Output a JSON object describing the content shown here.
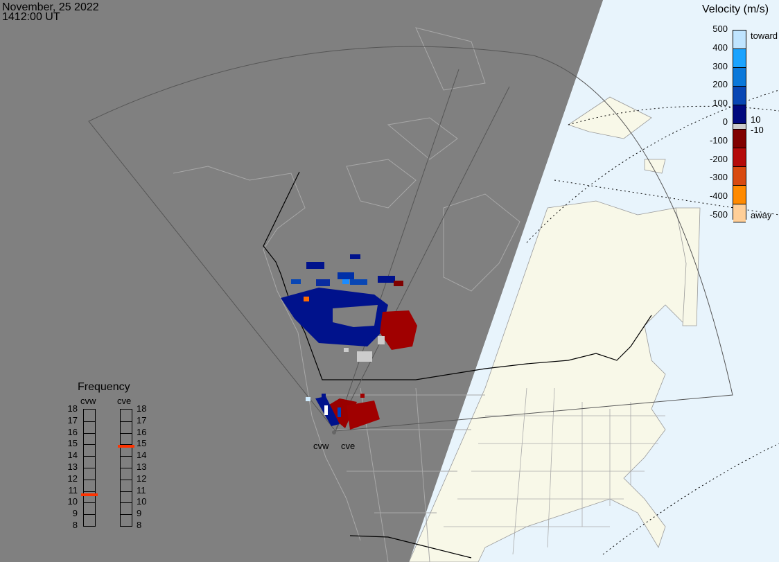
{
  "header": {
    "date": "November, 25 2022",
    "time": "1412:00 UT"
  },
  "colorbar": {
    "title": "Velocity (m/s)",
    "ticks": [
      "500",
      "400",
      "300",
      "200",
      "100",
      "0",
      "-100",
      "-200",
      "-300",
      "-400",
      "-500"
    ],
    "toward_label": "toward",
    "away_label": "away",
    "ground_scatter_hi": "10",
    "ground_scatter_lo": "-10",
    "colors": [
      "#bfe4ff",
      "#1aa3ff",
      "#0a78da",
      "#0846b4",
      "#00087e",
      "#cccccc",
      "#800000",
      "#b40a0a",
      "#d84a10",
      "#ff8a00",
      "#ffcf98"
    ]
  },
  "frequency": {
    "title": "Frequency",
    "ticks": [
      "18",
      "17",
      "16",
      "15",
      "14",
      "13",
      "12",
      "11",
      "10",
      "9",
      "8"
    ],
    "radars": [
      {
        "name": "cvw",
        "freq_mhz": 10.6
      },
      {
        "name": "cve",
        "freq_mhz": 14.8
      }
    ],
    "marker_color": "#ff3300"
  },
  "map": {
    "radar_labels": [
      "cvw",
      "cve"
    ],
    "night_color": "#808080",
    "ocean_color": "#e8f4fc",
    "land_color": "#f8f8e8"
  }
}
